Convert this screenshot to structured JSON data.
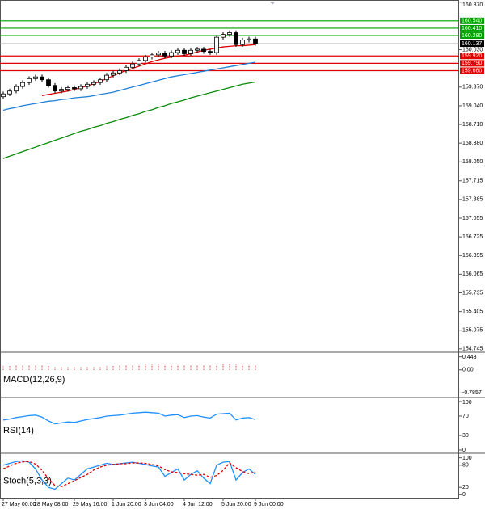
{
  "chart_data": [
    {
      "type": "candlestick",
      "categories": [
        "27 May 00:00",
        null,
        null,
        null,
        null,
        "28 May 08:00",
        null,
        null,
        null,
        null,
        null,
        "29 May 16:00",
        null,
        null,
        null,
        null,
        null,
        "1 Jun 20:00",
        null,
        null,
        null,
        null,
        "3 Jun 04:00",
        null,
        null,
        null,
        null,
        null,
        "4 Jun 12:00",
        null,
        null,
        null,
        null,
        null,
        "5 Jun 20:00",
        null,
        null,
        null,
        null,
        "9 Jun 00:00"
      ],
      "open": [
        159.2,
        159.25,
        159.3,
        159.38,
        159.45,
        159.52,
        159.55,
        159.5,
        159.4,
        159.3,
        159.33,
        159.36,
        159.34,
        159.38,
        159.42,
        159.45,
        159.5,
        159.58,
        159.62,
        159.66,
        159.72,
        159.78,
        159.84,
        159.9,
        159.94,
        159.97,
        159.92,
        159.98,
        160.02,
        159.96,
        160.02,
        160.04,
        160.0,
        159.98,
        160.25,
        160.3,
        160.33,
        160.12,
        160.2,
        160.22
      ],
      "high": [
        159.29,
        159.34,
        159.42,
        159.49,
        159.56,
        159.59,
        159.59,
        159.54,
        159.44,
        159.37,
        159.4,
        159.4,
        159.42,
        159.46,
        159.49,
        159.54,
        159.62,
        159.66,
        159.7,
        159.76,
        159.82,
        159.88,
        159.94,
        159.98,
        160.01,
        160.01,
        160.02,
        160.06,
        160.06,
        160.06,
        160.08,
        160.08,
        160.04,
        160.29,
        160.34,
        160.37,
        160.37,
        160.24,
        160.26,
        160.26
      ],
      "low": [
        159.16,
        159.21,
        159.26,
        159.34,
        159.41,
        159.48,
        159.46,
        159.36,
        159.26,
        159.26,
        159.29,
        159.3,
        159.3,
        159.34,
        159.38,
        159.41,
        159.46,
        159.54,
        159.58,
        159.62,
        159.68,
        159.74,
        159.8,
        159.86,
        159.9,
        159.88,
        159.88,
        159.94,
        159.92,
        159.92,
        159.98,
        159.96,
        159.94,
        159.94,
        160.21,
        160.26,
        160.08,
        160.08,
        160.16,
        160.1
      ],
      "close": [
        159.25,
        159.3,
        159.38,
        159.45,
        159.52,
        159.55,
        159.5,
        159.4,
        159.3,
        159.33,
        159.36,
        159.34,
        159.38,
        159.42,
        159.45,
        159.5,
        159.58,
        159.62,
        159.66,
        159.72,
        159.78,
        159.84,
        159.9,
        159.94,
        159.97,
        159.92,
        159.98,
        160.02,
        159.96,
        160.02,
        160.04,
        160.0,
        159.98,
        160.25,
        160.3,
        160.33,
        160.12,
        160.2,
        160.22,
        160.137
      ],
      "overlays": [
        {
          "color": "#e00000",
          "values": [
            null,
            null,
            null,
            null,
            null,
            null,
            159.22,
            159.24,
            159.26,
            159.28,
            159.3,
            159.33,
            159.36,
            159.39,
            159.43,
            159.47,
            159.52,
            159.57,
            159.62,
            159.66,
            159.7,
            159.74,
            159.78,
            159.82,
            159.85,
            159.88,
            159.9,
            159.92,
            159.93,
            159.96,
            159.99,
            160.02,
            160.04,
            160.06,
            160.08,
            160.09,
            160.1,
            160.1,
            160.11,
            160.12
          ]
        },
        {
          "color": "#1e7fd8",
          "values": [
            158.96,
            158.99,
            159.01,
            159.04,
            159.06,
            159.08,
            159.1,
            159.12,
            159.13,
            159.15,
            159.16,
            159.18,
            159.19,
            159.2,
            159.22,
            159.24,
            159.26,
            159.28,
            159.31,
            159.34,
            159.37,
            159.4,
            159.43,
            159.46,
            159.49,
            159.52,
            159.55,
            159.57,
            159.59,
            159.61,
            159.63,
            159.65,
            159.67,
            159.69,
            159.71,
            159.73,
            159.75,
            159.77,
            159.79,
            159.81
          ]
        },
        {
          "color": "#0a8a0a",
          "values": [
            158.11,
            158.15,
            158.19,
            158.23,
            158.27,
            158.31,
            158.35,
            158.39,
            158.43,
            158.47,
            158.51,
            158.55,
            158.59,
            158.62,
            158.66,
            158.69,
            158.73,
            158.76,
            158.8,
            158.83,
            158.87,
            158.9,
            158.94,
            158.97,
            159.01,
            159.04,
            159.08,
            159.11,
            159.14,
            159.18,
            159.21,
            159.24,
            159.27,
            159.3,
            159.33,
            159.36,
            159.39,
            159.42,
            159.44,
            159.46
          ]
        }
      ],
      "levels": [
        {
          "value": 160.54,
          "label": "160.540",
          "color": "#00a000"
        },
        {
          "value": 160.41,
          "label": "160.410",
          "color": "#00a000"
        },
        {
          "value": 160.28,
          "label": "160.280",
          "color": "#00a000"
        },
        {
          "value": 159.92,
          "label": "159.920",
          "color": "#e00000"
        },
        {
          "value": 159.79,
          "label": "159.790",
          "color": "#e00000"
        },
        {
          "value": 159.66,
          "label": "159.660",
          "color": "#e00000"
        }
      ],
      "price_line": 160.137,
      "ylim": [
        154.7,
        160.88
      ],
      "yticks": [
        {
          "value": 160.87,
          "label": "160.870"
        },
        {
          "value": 160.03,
          "label": "160.030"
        },
        {
          "value": 159.37,
          "label": "159.370"
        },
        {
          "value": 159.04,
          "label": "159.040"
        },
        {
          "value": 158.71,
          "label": "158.710"
        },
        {
          "value": 158.38,
          "label": "158.380"
        },
        {
          "value": 158.05,
          "label": "158.050"
        },
        157.715,
        157.385,
        157.055,
        156.725,
        156.395,
        156.065,
        155.735,
        155.405,
        155.075,
        154.745
      ]
    },
    {
      "type": "histogram",
      "title": "MACD(12,26,9)",
      "color": "#e00000",
      "values": [
        0.12,
        0.13,
        0.14,
        0.15,
        0.16,
        0.16,
        0.15,
        0.13,
        0.11,
        0.1,
        0.09,
        0.09,
        0.09,
        0.1,
        0.1,
        0.11,
        0.12,
        0.13,
        0.14,
        0.15,
        0.16,
        0.17,
        0.18,
        0.18,
        0.18,
        0.17,
        0.17,
        0.17,
        0.16,
        0.16,
        0.16,
        0.15,
        0.14,
        0.17,
        0.19,
        0.2,
        0.18,
        0.17,
        0.17,
        0.16
      ],
      "ylim": [
        -0.8857,
        0.543
      ],
      "yticks": [
        0.443,
        {
          "value": 0,
          "label": "0.00"
        },
        -0.7857
      ]
    },
    {
      "type": "line",
      "title": "RSI(14)",
      "series": [
        {
          "color": "#1e90ff",
          "values": [
            62,
            64,
            67,
            69,
            71,
            72,
            68,
            60,
            54,
            56,
            58,
            57,
            60,
            63,
            65,
            67,
            70,
            71,
            72,
            74,
            76,
            77,
            78,
            77,
            76,
            70,
            72,
            73,
            67,
            70,
            71,
            68,
            66,
            74,
            75,
            76,
            62,
            66,
            67,
            63
          ]
        }
      ],
      "ylim": [
        -5,
        105
      ],
      "yticks": [
        100,
        70,
        30,
        0
      ]
    },
    {
      "type": "line",
      "title": "Stoch(5,3,3)",
      "series": [
        {
          "color": "#1e90ff",
          "values": [
            80,
            85,
            90,
            92,
            88,
            70,
            40,
            20,
            15,
            30,
            45,
            40,
            55,
            70,
            75,
            80,
            85,
            82,
            84,
            86,
            88,
            85,
            82,
            78,
            75,
            50,
            60,
            70,
            40,
            55,
            65,
            45,
            30,
            80,
            88,
            90,
            40,
            60,
            70,
            55
          ]
        },
        {
          "color": "#e00000",
          "dashed": true,
          "values": [
            70,
            78,
            85,
            89,
            90,
            83,
            66,
            43,
            25,
            22,
            30,
            38,
            47,
            55,
            67,
            75,
            80,
            82,
            84,
            84,
            86,
            86,
            85,
            82,
            78,
            68,
            62,
            60,
            57,
            55,
            53,
            55,
            47,
            52,
            66,
            86,
            73,
            63,
            57,
            62
          ]
        }
      ],
      "ylim": [
        -8,
        108
      ],
      "yticks": [
        100,
        80,
        20,
        0
      ]
    }
  ]
}
